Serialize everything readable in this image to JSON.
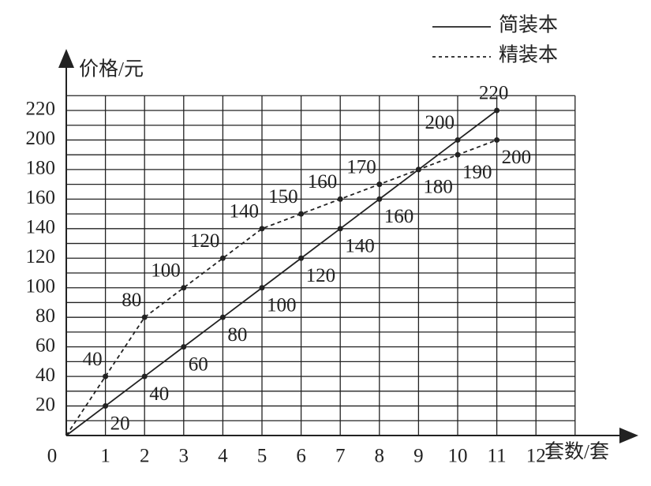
{
  "chart_data": {
    "type": "line",
    "x_label": "套数/套",
    "y_label": "价格/元",
    "x": [
      0,
      1,
      2,
      3,
      4,
      5,
      6,
      7,
      8,
      9,
      10,
      11
    ],
    "series": [
      {
        "name": "简装本",
        "color": "#222",
        "dash": false,
        "values": [
          0,
          20,
          40,
          60,
          80,
          100,
          120,
          140,
          160,
          180,
          200,
          220
        ]
      },
      {
        "name": "精装本",
        "color": "#222",
        "dash": true,
        "values": [
          0,
          40,
          80,
          100,
          120,
          140,
          150,
          160,
          170,
          180,
          190,
          200
        ]
      }
    ],
    "xlim": [
      0,
      13
    ],
    "xticks": [
      0,
      1,
      2,
      3,
      4,
      5,
      6,
      7,
      8,
      9,
      10,
      11,
      12
    ],
    "ylim": [
      0,
      230
    ],
    "yticks": [
      20,
      40,
      60,
      80,
      100,
      120,
      140,
      160,
      180,
      200,
      220
    ],
    "yminorticks": [
      10,
      30,
      50,
      70,
      90,
      110,
      130,
      150,
      170,
      190,
      210,
      230
    ],
    "grid": true,
    "legend": "top-right"
  }
}
